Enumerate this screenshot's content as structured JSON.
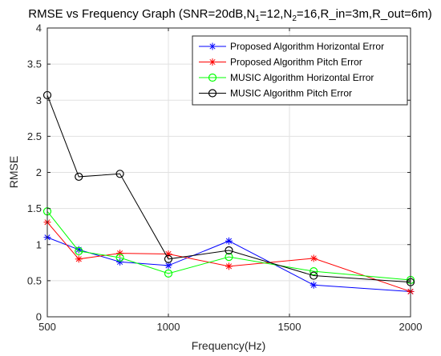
{
  "chart_data": {
    "type": "line",
    "title": "RMSE vs Frequency Graph (SNR=20dB,N",
    "title_parts": {
      "prefix": "RMSE vs Frequency Graph (SNR=20dB,N",
      "sub1": "1",
      "mid": "=12,N",
      "sub2": "2",
      "suffix": "=16,R_in=3m,R_out=6m)"
    },
    "xlabel": "Frequency(Hz)",
    "ylabel": "RMSE",
    "xlim": [
      500,
      2000
    ],
    "ylim": [
      0,
      4
    ],
    "xticks": [
      500,
      1000,
      1500,
      2000
    ],
    "yticks": [
      0,
      0.5,
      1,
      1.5,
      2,
      2.5,
      3,
      3.5,
      4
    ],
    "ytick_labels": [
      "0",
      "0.5",
      "1",
      "1.5",
      "2",
      "2.5",
      "3",
      "3.5",
      "4"
    ],
    "grid": true,
    "legend_position": "top-right",
    "x": [
      500,
      630,
      800,
      1000,
      1250,
      1600,
      2000
    ],
    "series": [
      {
        "name": "Proposed Algorithm Horizontal Error",
        "color": "#0000ff",
        "marker": "asterisk",
        "values": [
          1.1,
          0.93,
          0.76,
          0.71,
          1.05,
          0.44,
          0.35
        ]
      },
      {
        "name": "Proposed Algorithm Pitch Error",
        "color": "#ff0000",
        "marker": "asterisk",
        "values": [
          1.31,
          0.8,
          0.88,
          0.87,
          0.7,
          0.81,
          0.35
        ]
      },
      {
        "name": "MUSIC Algorithm Horizontal Error",
        "color": "#00ff00",
        "marker": "circle",
        "values": [
          1.46,
          0.91,
          0.82,
          0.6,
          0.83,
          0.63,
          0.51
        ]
      },
      {
        "name": "MUSIC Algorithm Pitch Error",
        "color": "#000000",
        "marker": "circle",
        "values": [
          3.07,
          1.94,
          1.98,
          0.8,
          0.92,
          0.57,
          0.48
        ]
      }
    ]
  }
}
